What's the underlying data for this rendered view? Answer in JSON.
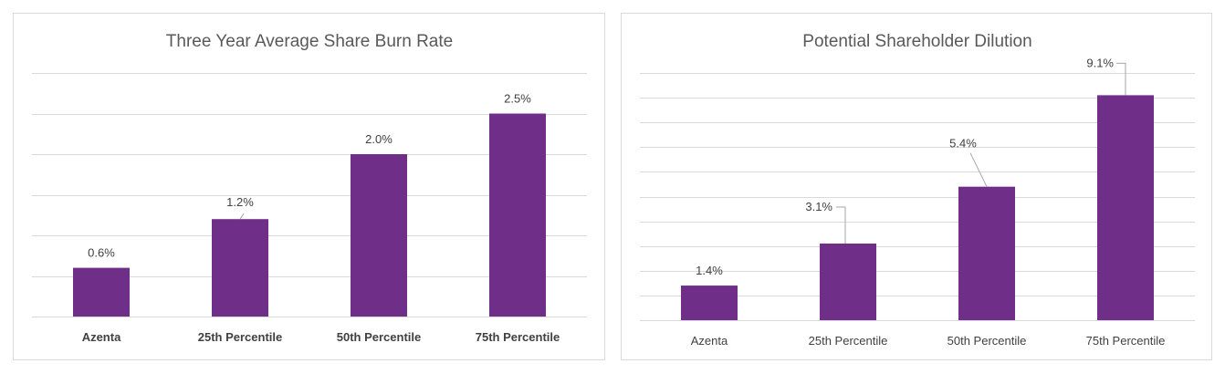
{
  "colors": {
    "bar": "#6f2f89",
    "gridline": "#d9d9d9",
    "leader": "#a6a6a6"
  },
  "chart_data": [
    {
      "type": "bar",
      "title": "Three Year Average Share Burn Rate",
      "categories": [
        "Azenta",
        "25th Percentile",
        "50th Percentile",
        "75th Percentile"
      ],
      "values": [
        0.6,
        1.2,
        2.0,
        2.5
      ],
      "value_labels": [
        "0.6%",
        "1.2%",
        "2.0%",
        "2.5%"
      ],
      "unit": "%",
      "ylim": [
        0,
        3.0
      ],
      "grid_step": 0.5,
      "grid": true,
      "legend": "none",
      "xlabel": "",
      "ylabel": ""
    },
    {
      "type": "bar",
      "title": "Potential Shareholder Dilution",
      "categories": [
        "Azenta",
        "25th Percentile",
        "50th Percentile",
        "75th Percentile"
      ],
      "values": [
        1.4,
        3.1,
        5.4,
        9.1
      ],
      "value_labels": [
        "1.4%",
        "3.1%",
        "5.4%",
        "9.1%"
      ],
      "unit": "%",
      "ylim": [
        0,
        10.0
      ],
      "grid_step": 1.0,
      "grid": true,
      "legend": "none",
      "xlabel": "",
      "ylabel": ""
    }
  ]
}
